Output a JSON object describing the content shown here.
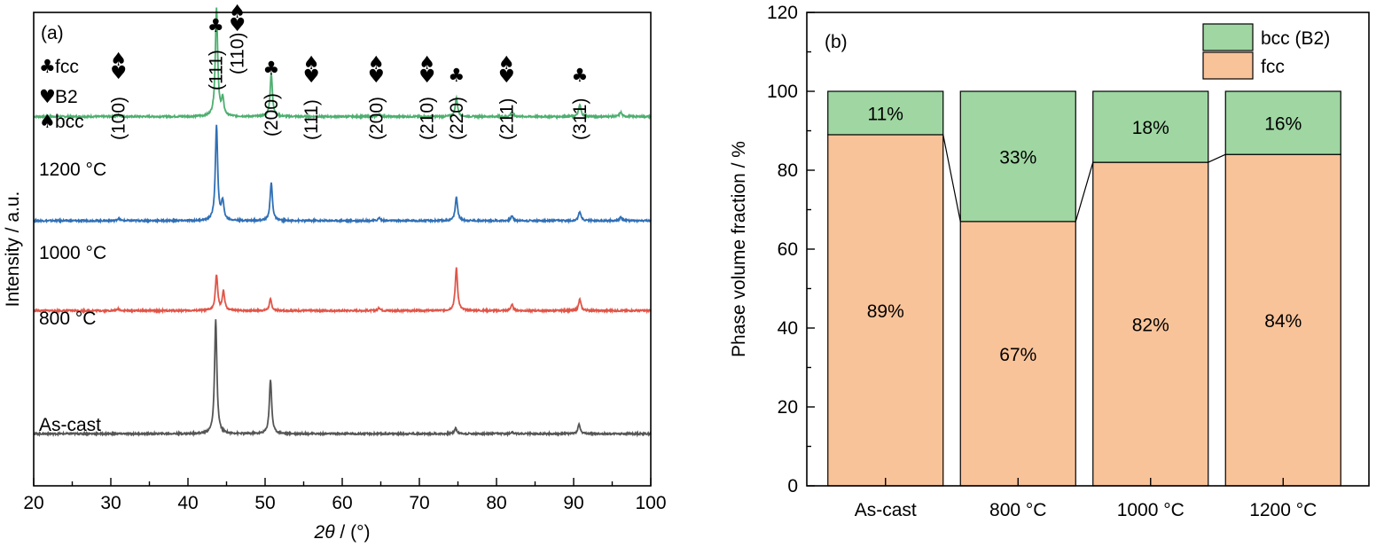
{
  "chart_data": [
    {
      "type": "line",
      "panel": "(a)",
      "xlabel_symbol": "2θ",
      "xlabel_unit": " / (°)",
      "ylabel": "Intensity / a.u.",
      "xlim": [
        20,
        100
      ],
      "x_ticks": [
        "20",
        "30",
        "40",
        "50",
        "60",
        "70",
        "80",
        "90",
        "100"
      ],
      "y_ticks_labeled": false,
      "legend": [
        {
          "symbol": "♣",
          "label": "fcc"
        },
        {
          "symbol": "♥",
          "label": "B2"
        },
        {
          "symbol": "♠",
          "label": "bcc"
        }
      ],
      "peak_annotations": [
        {
          "x": 31.0,
          "label": "(100)",
          "symbols": [
            "♠",
            "♥"
          ]
        },
        {
          "x": 43.6,
          "label": "(111)",
          "symbols": [
            "♣"
          ]
        },
        {
          "x": 46.4,
          "label": "(110)",
          "symbols": [
            "♠",
            "♥"
          ]
        },
        {
          "x": 50.8,
          "label": "(200)",
          "symbols": [
            "♣"
          ]
        },
        {
          "x": 56.0,
          "label": "(111)",
          "symbols": [
            "♠",
            "♥"
          ]
        },
        {
          "x": 64.4,
          "label": "(200)",
          "symbols": [
            "♠",
            "♥"
          ]
        },
        {
          "x": 71.0,
          "label": "(210)",
          "symbols": [
            "♠",
            "♥"
          ]
        },
        {
          "x": 74.8,
          "label": "(220)",
          "symbols": [
            "♣"
          ]
        },
        {
          "x": 81.3,
          "label": "(211)",
          "symbols": [
            "♠",
            "♥"
          ]
        },
        {
          "x": 90.8,
          "label": "(311)",
          "symbols": [
            "♣"
          ]
        }
      ],
      "series": [
        {
          "name": "1200 °C",
          "color": "#4daf6f",
          "baseline": 78,
          "peaks": [
            [
              31.0,
              0.3
            ],
            [
              43.7,
              23
            ],
            [
              44.5,
              3.5
            ],
            [
              50.8,
              9
            ],
            [
              64.8,
              0.6
            ],
            [
              74.8,
              4
            ],
            [
              82.0,
              1
            ],
            [
              90.8,
              2.5
            ],
            [
              96.1,
              0.9
            ]
          ]
        },
        {
          "name": "1000 °C",
          "color": "#2f6fb5",
          "baseline": 56,
          "peaks": [
            [
              31.0,
              0.5
            ],
            [
              43.7,
              20
            ],
            [
              44.5,
              4
            ],
            [
              50.8,
              8
            ],
            [
              64.8,
              0.6
            ],
            [
              74.8,
              5
            ],
            [
              82.0,
              1
            ],
            [
              90.8,
              2
            ],
            [
              96.1,
              0.8
            ]
          ]
        },
        {
          "name": "800 °C",
          "color": "#e05548",
          "baseline": 37,
          "peaks": [
            [
              31.0,
              0.4
            ],
            [
              43.7,
              7.5
            ],
            [
              44.6,
              4
            ],
            [
              50.7,
              2.4
            ],
            [
              64.8,
              0.6
            ],
            [
              74.8,
              9
            ],
            [
              82.0,
              1.3
            ],
            [
              90.8,
              2.4
            ]
          ]
        },
        {
          "name": "As-cast",
          "color": "#555555",
          "baseline": 11,
          "peaks": [
            [
              43.6,
              24
            ],
            [
              50.7,
              11.5
            ],
            [
              74.7,
              1.2
            ],
            [
              82.0,
              0.4
            ],
            [
              90.7,
              2
            ]
          ]
        }
      ]
    },
    {
      "type": "bar",
      "stacked": true,
      "panel": "(b)",
      "ylabel": "Phase volume fraction / %",
      "ylim": [
        0,
        120
      ],
      "y_ticks": [
        "0",
        "20",
        "40",
        "60",
        "80",
        "100",
        "120"
      ],
      "categories": [
        "As-cast",
        "800 °C",
        "1000 °C",
        "1200 °C"
      ],
      "series": [
        {
          "name": "fcc",
          "color": "#f9c39a",
          "values": [
            89,
            67,
            82,
            84
          ],
          "labels": [
            "89%",
            "67%",
            "82%",
            "84%"
          ]
        },
        {
          "name": "bcc (B2)",
          "color": "#9fd6a2",
          "values": [
            11,
            33,
            18,
            16
          ],
          "labels": [
            "11%",
            "33%",
            "18%",
            "16%"
          ]
        }
      ],
      "legend_position": "top-right"
    }
  ]
}
